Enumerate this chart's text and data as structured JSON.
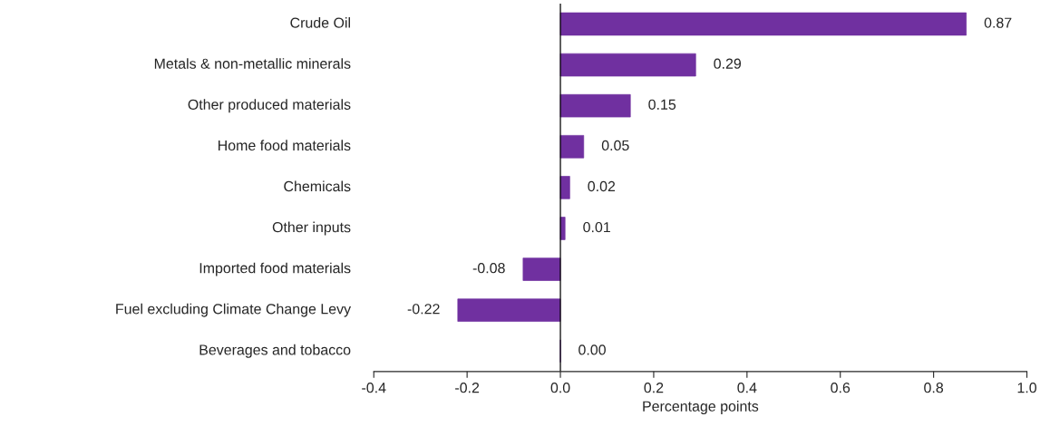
{
  "chart_data": {
    "type": "bar",
    "orientation": "horizontal",
    "xlabel": "Percentage points",
    "categories": [
      "Crude Oil",
      "Metals & non-metallic minerals",
      "Other produced materials",
      "Home food materials",
      "Chemicals",
      "Other inputs",
      "Imported food materials",
      "Fuel excluding Climate Change Levy",
      "Beverages and tobacco"
    ],
    "values": [
      0.87,
      0.29,
      0.15,
      0.05,
      0.02,
      0.01,
      -0.08,
      -0.22,
      0.0
    ],
    "value_labels": [
      "0.87",
      "0.29",
      "0.15",
      "0.05",
      "0.02",
      "0.01",
      "-0.08",
      "-0.22",
      "0.00"
    ],
    "color": "#7030a0",
    "xlim": [
      -0.4,
      1.0
    ],
    "xticks": [
      {
        "value": -0.4,
        "label": "-0.4"
      },
      {
        "value": -0.2,
        "label": "-0.2"
      },
      {
        "value": 0,
        "label": "0.0"
      },
      0.2,
      0.4,
      0.6,
      0.8,
      {
        "value": 1.0,
        "label": "1.0"
      }
    ],
    "ref_lines": [
      {
        "axis": "x",
        "value": 0,
        "color": "#000000",
        "line_style": "solid"
      }
    ],
    "grid": false,
    "legend": false
  }
}
